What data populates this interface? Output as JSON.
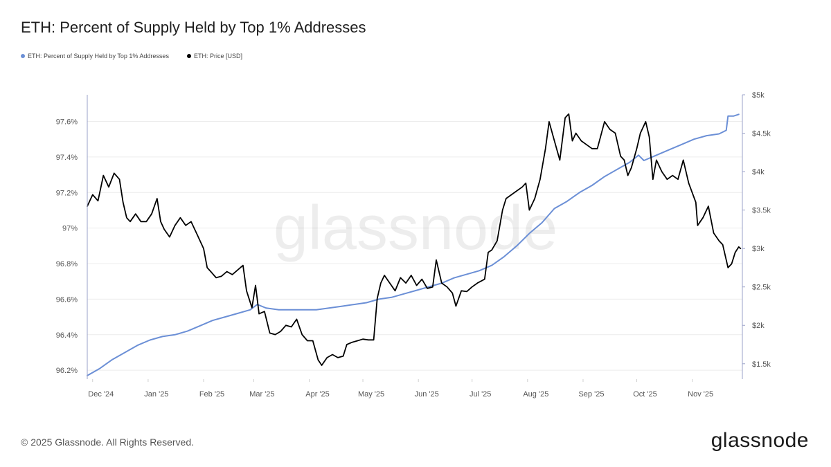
{
  "header": {
    "title": "ETH: Percent of Supply Held by Top 1% Addresses"
  },
  "watermark": "glassnode",
  "footer": {
    "copyright": "© 2025 Glassnode. All Rights Reserved.",
    "logo": "glassnode"
  },
  "colors": {
    "supply_line": "#6b8fd6",
    "price_line": "#000000",
    "grid": "#ececec",
    "axis": "#9aa0c8"
  },
  "chart_data": {
    "type": "line",
    "title": "ETH: Percent of Supply Held by Top 1% Addresses",
    "grid": true,
    "legend_placement": "top-left",
    "x_ticks": [
      "Dec '24",
      "Jan '25",
      "Feb '25",
      "Mar '25",
      "Apr '25",
      "May '25",
      "Jun '25",
      "Jul '25",
      "Aug '25",
      "Sep '25",
      "Oct '25",
      "Nov '25"
    ],
    "x_tick_dates": [
      "2024-12-01",
      "2025-01-01",
      "2025-02-01",
      "2025-03-01",
      "2025-04-01",
      "2025-05-01",
      "2025-06-01",
      "2025-07-01",
      "2025-08-01",
      "2025-09-01",
      "2025-10-01",
      "2025-11-01"
    ],
    "xlim": [
      "2024-11-28",
      "2025-11-29"
    ],
    "y_left": {
      "ticks": [
        "96.2%",
        "96.4%",
        "96.6%",
        "96.8%",
        "97%",
        "97.2%",
        "97.4%",
        "97.6%"
      ],
      "tick_values": [
        96.2,
        96.4,
        96.6,
        96.8,
        97.0,
        97.2,
        97.4,
        97.6
      ],
      "ylim": [
        96.15,
        97.75
      ]
    },
    "y_right": {
      "ticks": [
        "$1.5k",
        "$2k",
        "$2.5k",
        "$3k",
        "$3.5k",
        "$4k",
        "$4.5k",
        "$5k"
      ],
      "tick_values": [
        1500,
        2000,
        2500,
        3000,
        3500,
        4000,
        4500,
        5000
      ],
      "ylim": [
        1300,
        5000
      ]
    },
    "series": [
      {
        "name": "ETH: Percent of Supply Held by Top 1% Addresses",
        "axis": "left",
        "color": "#6b8fd6",
        "points": [
          [
            "2024-11-28",
            96.17
          ],
          [
            "2024-12-05",
            96.21
          ],
          [
            "2024-12-12",
            96.26
          ],
          [
            "2024-12-19",
            96.3
          ],
          [
            "2024-12-26",
            96.34
          ],
          [
            "2025-01-02",
            96.37
          ],
          [
            "2025-01-09",
            96.39
          ],
          [
            "2025-01-16",
            96.4
          ],
          [
            "2025-01-23",
            96.42
          ],
          [
            "2025-01-30",
            96.45
          ],
          [
            "2025-02-06",
            96.48
          ],
          [
            "2025-02-13",
            96.5
          ],
          [
            "2025-02-20",
            96.52
          ],
          [
            "2025-02-27",
            96.54
          ],
          [
            "2025-03-03",
            96.57
          ],
          [
            "2025-03-08",
            96.55
          ],
          [
            "2025-03-15",
            96.54
          ],
          [
            "2025-03-22",
            96.54
          ],
          [
            "2025-03-29",
            96.54
          ],
          [
            "2025-04-05",
            96.54
          ],
          [
            "2025-04-12",
            96.55
          ],
          [
            "2025-04-19",
            96.56
          ],
          [
            "2025-04-26",
            96.57
          ],
          [
            "2025-05-03",
            96.58
          ],
          [
            "2025-05-10",
            96.6
          ],
          [
            "2025-05-17",
            96.61
          ],
          [
            "2025-05-24",
            96.63
          ],
          [
            "2025-05-31",
            96.65
          ],
          [
            "2025-06-07",
            96.67
          ],
          [
            "2025-06-14",
            96.69
          ],
          [
            "2025-06-21",
            96.72
          ],
          [
            "2025-06-28",
            96.74
          ],
          [
            "2025-07-05",
            96.76
          ],
          [
            "2025-07-12",
            96.79
          ],
          [
            "2025-07-19",
            96.84
          ],
          [
            "2025-07-26",
            96.9
          ],
          [
            "2025-08-02",
            96.97
          ],
          [
            "2025-08-09",
            97.03
          ],
          [
            "2025-08-16",
            97.11
          ],
          [
            "2025-08-23",
            97.15
          ],
          [
            "2025-08-30",
            97.2
          ],
          [
            "2025-09-06",
            97.24
          ],
          [
            "2025-09-13",
            97.29
          ],
          [
            "2025-09-20",
            97.33
          ],
          [
            "2025-09-27",
            97.37
          ],
          [
            "2025-10-02",
            97.41
          ],
          [
            "2025-10-05",
            97.38
          ],
          [
            "2025-10-12",
            97.41
          ],
          [
            "2025-10-19",
            97.44
          ],
          [
            "2025-10-26",
            97.47
          ],
          [
            "2025-11-02",
            97.5
          ],
          [
            "2025-11-09",
            97.52
          ],
          [
            "2025-11-16",
            97.53
          ],
          [
            "2025-11-20",
            97.55
          ],
          [
            "2025-11-21",
            97.63
          ],
          [
            "2025-11-24",
            97.63
          ],
          [
            "2025-11-27",
            97.64
          ]
        ]
      },
      {
        "name": "ETH: Price [USD]",
        "axis": "right",
        "color": "#000000",
        "points": [
          [
            "2024-11-28",
            3550
          ],
          [
            "2024-12-01",
            3700
          ],
          [
            "2024-12-04",
            3620
          ],
          [
            "2024-12-07",
            3950
          ],
          [
            "2024-12-10",
            3800
          ],
          [
            "2024-12-13",
            3980
          ],
          [
            "2024-12-16",
            3900
          ],
          [
            "2024-12-18",
            3600
          ],
          [
            "2024-12-20",
            3400
          ],
          [
            "2024-12-22",
            3350
          ],
          [
            "2024-12-25",
            3450
          ],
          [
            "2024-12-28",
            3350
          ],
          [
            "2024-12-31",
            3350
          ],
          [
            "2025-01-03",
            3450
          ],
          [
            "2025-01-06",
            3650
          ],
          [
            "2025-01-08",
            3350
          ],
          [
            "2025-01-10",
            3250
          ],
          [
            "2025-01-13",
            3150
          ],
          [
            "2025-01-16",
            3300
          ],
          [
            "2025-01-19",
            3400
          ],
          [
            "2025-01-22",
            3300
          ],
          [
            "2025-01-25",
            3350
          ],
          [
            "2025-01-28",
            3200
          ],
          [
            "2025-02-01",
            3000
          ],
          [
            "2025-02-03",
            2750
          ],
          [
            "2025-02-05",
            2700
          ],
          [
            "2025-02-08",
            2620
          ],
          [
            "2025-02-11",
            2640
          ],
          [
            "2025-02-14",
            2700
          ],
          [
            "2025-02-17",
            2660
          ],
          [
            "2025-02-20",
            2720
          ],
          [
            "2025-02-23",
            2780
          ],
          [
            "2025-02-25",
            2450
          ],
          [
            "2025-02-28",
            2230
          ],
          [
            "2025-03-02",
            2520
          ],
          [
            "2025-03-04",
            2150
          ],
          [
            "2025-03-07",
            2180
          ],
          [
            "2025-03-10",
            1900
          ],
          [
            "2025-03-13",
            1880
          ],
          [
            "2025-03-16",
            1920
          ],
          [
            "2025-03-19",
            2000
          ],
          [
            "2025-03-22",
            1980
          ],
          [
            "2025-03-25",
            2080
          ],
          [
            "2025-03-28",
            1880
          ],
          [
            "2025-03-31",
            1800
          ],
          [
            "2025-04-03",
            1800
          ],
          [
            "2025-04-06",
            1550
          ],
          [
            "2025-04-08",
            1480
          ],
          [
            "2025-04-11",
            1580
          ],
          [
            "2025-04-14",
            1620
          ],
          [
            "2025-04-17",
            1580
          ],
          [
            "2025-04-20",
            1600
          ],
          [
            "2025-04-22",
            1750
          ],
          [
            "2025-04-25",
            1780
          ],
          [
            "2025-04-28",
            1800
          ],
          [
            "2025-05-01",
            1820
          ],
          [
            "2025-05-04",
            1810
          ],
          [
            "2025-05-07",
            1810
          ],
          [
            "2025-05-09",
            2350
          ],
          [
            "2025-05-11",
            2550
          ],
          [
            "2025-05-13",
            2650
          ],
          [
            "2025-05-16",
            2550
          ],
          [
            "2025-05-19",
            2450
          ],
          [
            "2025-05-22",
            2620
          ],
          [
            "2025-05-25",
            2550
          ],
          [
            "2025-05-28",
            2650
          ],
          [
            "2025-05-31",
            2520
          ],
          [
            "2025-06-03",
            2600
          ],
          [
            "2025-06-06",
            2480
          ],
          [
            "2025-06-09",
            2500
          ],
          [
            "2025-06-11",
            2850
          ],
          [
            "2025-06-14",
            2550
          ],
          [
            "2025-06-17",
            2500
          ],
          [
            "2025-06-20",
            2420
          ],
          [
            "2025-06-22",
            2250
          ],
          [
            "2025-06-25",
            2450
          ],
          [
            "2025-06-28",
            2440
          ],
          [
            "2025-07-01",
            2500
          ],
          [
            "2025-07-04",
            2550
          ],
          [
            "2025-07-08",
            2600
          ],
          [
            "2025-07-10",
            2950
          ],
          [
            "2025-07-12",
            2980
          ],
          [
            "2025-07-15",
            3100
          ],
          [
            "2025-07-18",
            3500
          ],
          [
            "2025-07-20",
            3650
          ],
          [
            "2025-07-23",
            3700
          ],
          [
            "2025-07-26",
            3750
          ],
          [
            "2025-07-29",
            3800
          ],
          [
            "2025-07-31",
            3850
          ],
          [
            "2025-08-02",
            3500
          ],
          [
            "2025-08-05",
            3650
          ],
          [
            "2025-08-08",
            3900
          ],
          [
            "2025-08-11",
            4300
          ],
          [
            "2025-08-13",
            4650
          ],
          [
            "2025-08-16",
            4400
          ],
          [
            "2025-08-19",
            4150
          ],
          [
            "2025-08-22",
            4700
          ],
          [
            "2025-08-24",
            4750
          ],
          [
            "2025-08-26",
            4400
          ],
          [
            "2025-08-28",
            4500
          ],
          [
            "2025-08-31",
            4400
          ],
          [
            "2025-09-03",
            4350
          ],
          [
            "2025-09-06",
            4300
          ],
          [
            "2025-09-09",
            4300
          ],
          [
            "2025-09-13",
            4650
          ],
          [
            "2025-09-16",
            4550
          ],
          [
            "2025-09-19",
            4500
          ],
          [
            "2025-09-22",
            4200
          ],
          [
            "2025-09-24",
            4150
          ],
          [
            "2025-09-26",
            3950
          ],
          [
            "2025-09-28",
            4050
          ],
          [
            "2025-10-01",
            4300
          ],
          [
            "2025-10-03",
            4500
          ],
          [
            "2025-10-06",
            4650
          ],
          [
            "2025-10-08",
            4450
          ],
          [
            "2025-10-10",
            3900
          ],
          [
            "2025-10-12",
            4150
          ],
          [
            "2025-10-15",
            4000
          ],
          [
            "2025-10-18",
            3900
          ],
          [
            "2025-10-21",
            3950
          ],
          [
            "2025-10-24",
            3900
          ],
          [
            "2025-10-27",
            4150
          ],
          [
            "2025-10-30",
            3850
          ],
          [
            "2025-11-03",
            3600
          ],
          [
            "2025-11-04",
            3300
          ],
          [
            "2025-11-07",
            3400
          ],
          [
            "2025-11-10",
            3550
          ],
          [
            "2025-11-13",
            3200
          ],
          [
            "2025-11-16",
            3100
          ],
          [
            "2025-11-18",
            3050
          ],
          [
            "2025-11-21",
            2750
          ],
          [
            "2025-11-23",
            2800
          ],
          [
            "2025-11-25",
            2950
          ],
          [
            "2025-11-27",
            3020
          ],
          [
            "2025-11-28",
            3000
          ]
        ]
      }
    ]
  }
}
